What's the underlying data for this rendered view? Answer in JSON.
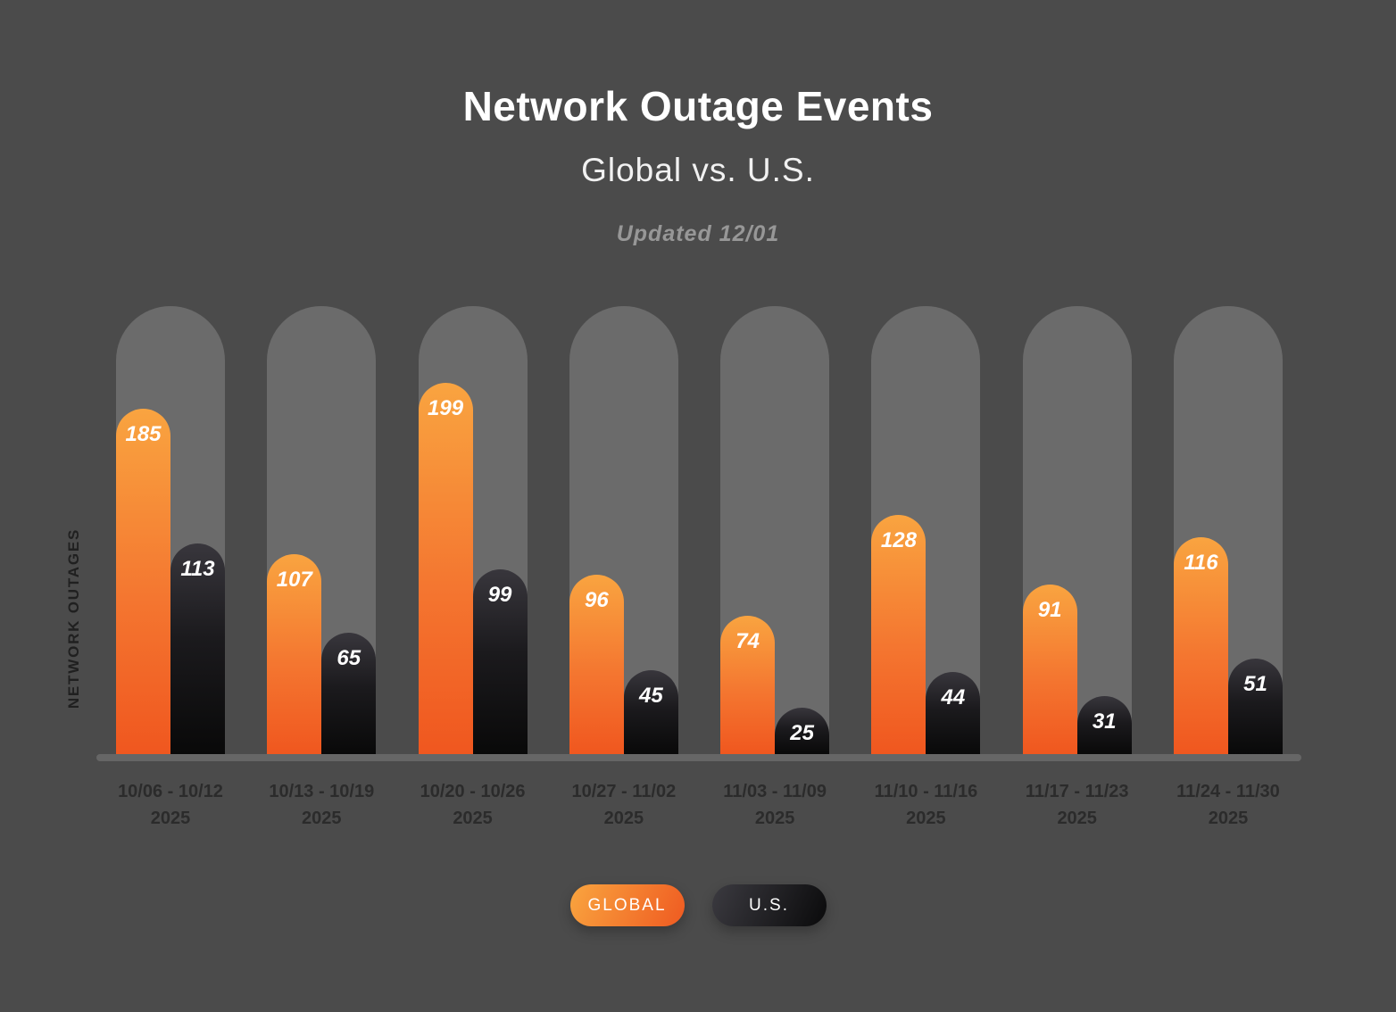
{
  "page": {
    "background_color": "#4b4b4b",
    "track_color": "#6b6b6b",
    "axis_color": "#666666"
  },
  "header": {
    "title": "Network Outage Events",
    "subtitle": "Global vs. U.S.",
    "updated": "Updated 12/01"
  },
  "chart_data": {
    "type": "bar",
    "title": "Network Outage Events",
    "subtitle": "Global vs. U.S.",
    "annotation": "Updated 12/01",
    "ylabel": "NETWORK OUTAGES",
    "ylim": [
      0,
      240
    ],
    "grid": false,
    "legend_position": "bottom",
    "categories": [
      {
        "range": "10/06 - 10/12",
        "year": "2025"
      },
      {
        "range": "10/13 - 10/19",
        "year": "2025"
      },
      {
        "range": "10/20 - 10/26",
        "year": "2025"
      },
      {
        "range": "10/27 - 11/02",
        "year": "2025"
      },
      {
        "range": "11/03 - 11/09",
        "year": "2025"
      },
      {
        "range": "11/10 - 11/16",
        "year": "2025"
      },
      {
        "range": "11/17 - 11/23",
        "year": "2025"
      },
      {
        "range": "11/24 - 11/30",
        "year": "2025"
      }
    ],
    "series": [
      {
        "name": "GLOBAL",
        "color_top": "#f9a440",
        "color_bottom": "#f0571f",
        "values": [
          185,
          107,
          199,
          96,
          74,
          128,
          91,
          116
        ]
      },
      {
        "name": "U.S.",
        "color_top": "#38363c",
        "color_bottom": "#090909",
        "values": [
          113,
          65,
          99,
          45,
          25,
          44,
          31,
          51
        ]
      }
    ]
  },
  "legend": {
    "items": [
      {
        "label": "GLOBAL"
      },
      {
        "label": "U.S."
      }
    ]
  }
}
